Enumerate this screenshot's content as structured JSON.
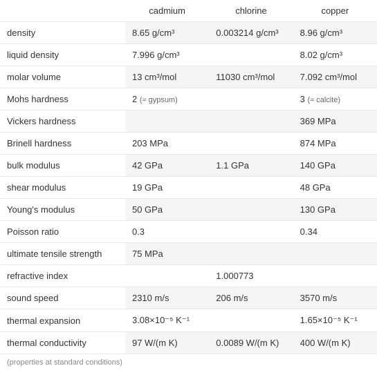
{
  "table": {
    "columns": [
      "",
      "cadmium",
      "chlorine",
      "copper"
    ],
    "rows": [
      {
        "property": "density",
        "cadmium": "8.65 g/cm³",
        "chlorine": "0.003214 g/cm³",
        "copper": "8.96 g/cm³"
      },
      {
        "property": "liquid density",
        "cadmium": "7.996 g/cm³",
        "chlorine": "",
        "copper": "8.02 g/cm³"
      },
      {
        "property": "molar volume",
        "cadmium": "13 cm³/mol",
        "chlorine": "11030 cm³/mol",
        "copper": "7.092 cm³/mol"
      },
      {
        "property": "Mohs hardness",
        "cadmium": "2",
        "cadmium_approx": "(≈ gypsum)",
        "chlorine": "",
        "copper": "3",
        "copper_approx": "(≈ calcite)"
      },
      {
        "property": "Vickers hardness",
        "cadmium": "",
        "chlorine": "",
        "copper": "369 MPa"
      },
      {
        "property": "Brinell hardness",
        "cadmium": "203 MPa",
        "chlorine": "",
        "copper": "874 MPa"
      },
      {
        "property": "bulk modulus",
        "cadmium": "42 GPa",
        "chlorine": "1.1 GPa",
        "copper": "140 GPa"
      },
      {
        "property": "shear modulus",
        "cadmium": "19 GPa",
        "chlorine": "",
        "copper": "48 GPa"
      },
      {
        "property": "Young's modulus",
        "cadmium": "50 GPa",
        "chlorine": "",
        "copper": "130 GPa"
      },
      {
        "property": "Poisson ratio",
        "cadmium": "0.3",
        "chlorine": "",
        "copper": "0.34"
      },
      {
        "property": "ultimate tensile strength",
        "cadmium": "75 MPa",
        "chlorine": "",
        "copper": ""
      },
      {
        "property": "refractive index",
        "cadmium": "",
        "chlorine": "1.000773",
        "copper": ""
      },
      {
        "property": "sound speed",
        "cadmium": "2310 m/s",
        "chlorine": "206 m/s",
        "copper": "3570 m/s"
      },
      {
        "property": "thermal expansion",
        "cadmium": "3.08×10⁻⁵ K⁻¹",
        "chlorine": "",
        "copper": "1.65×10⁻⁵ K⁻¹"
      },
      {
        "property": "thermal conductivity",
        "cadmium": "97 W/(m K)",
        "chlorine": "0.0089 W/(m K)",
        "copper": "400 W/(m K)"
      }
    ],
    "footnote": "(properties at standard conditions)",
    "colors": {
      "background": "#ffffff",
      "row_odd": "#f5f5f5",
      "row_even": "#ffffff",
      "border": "#e8e8e8",
      "text": "#333333",
      "approx_text": "#666666",
      "footnote_text": "#888888"
    },
    "font_size": 13,
    "approx_font_size": 11,
    "footnote_font_size": 11
  }
}
